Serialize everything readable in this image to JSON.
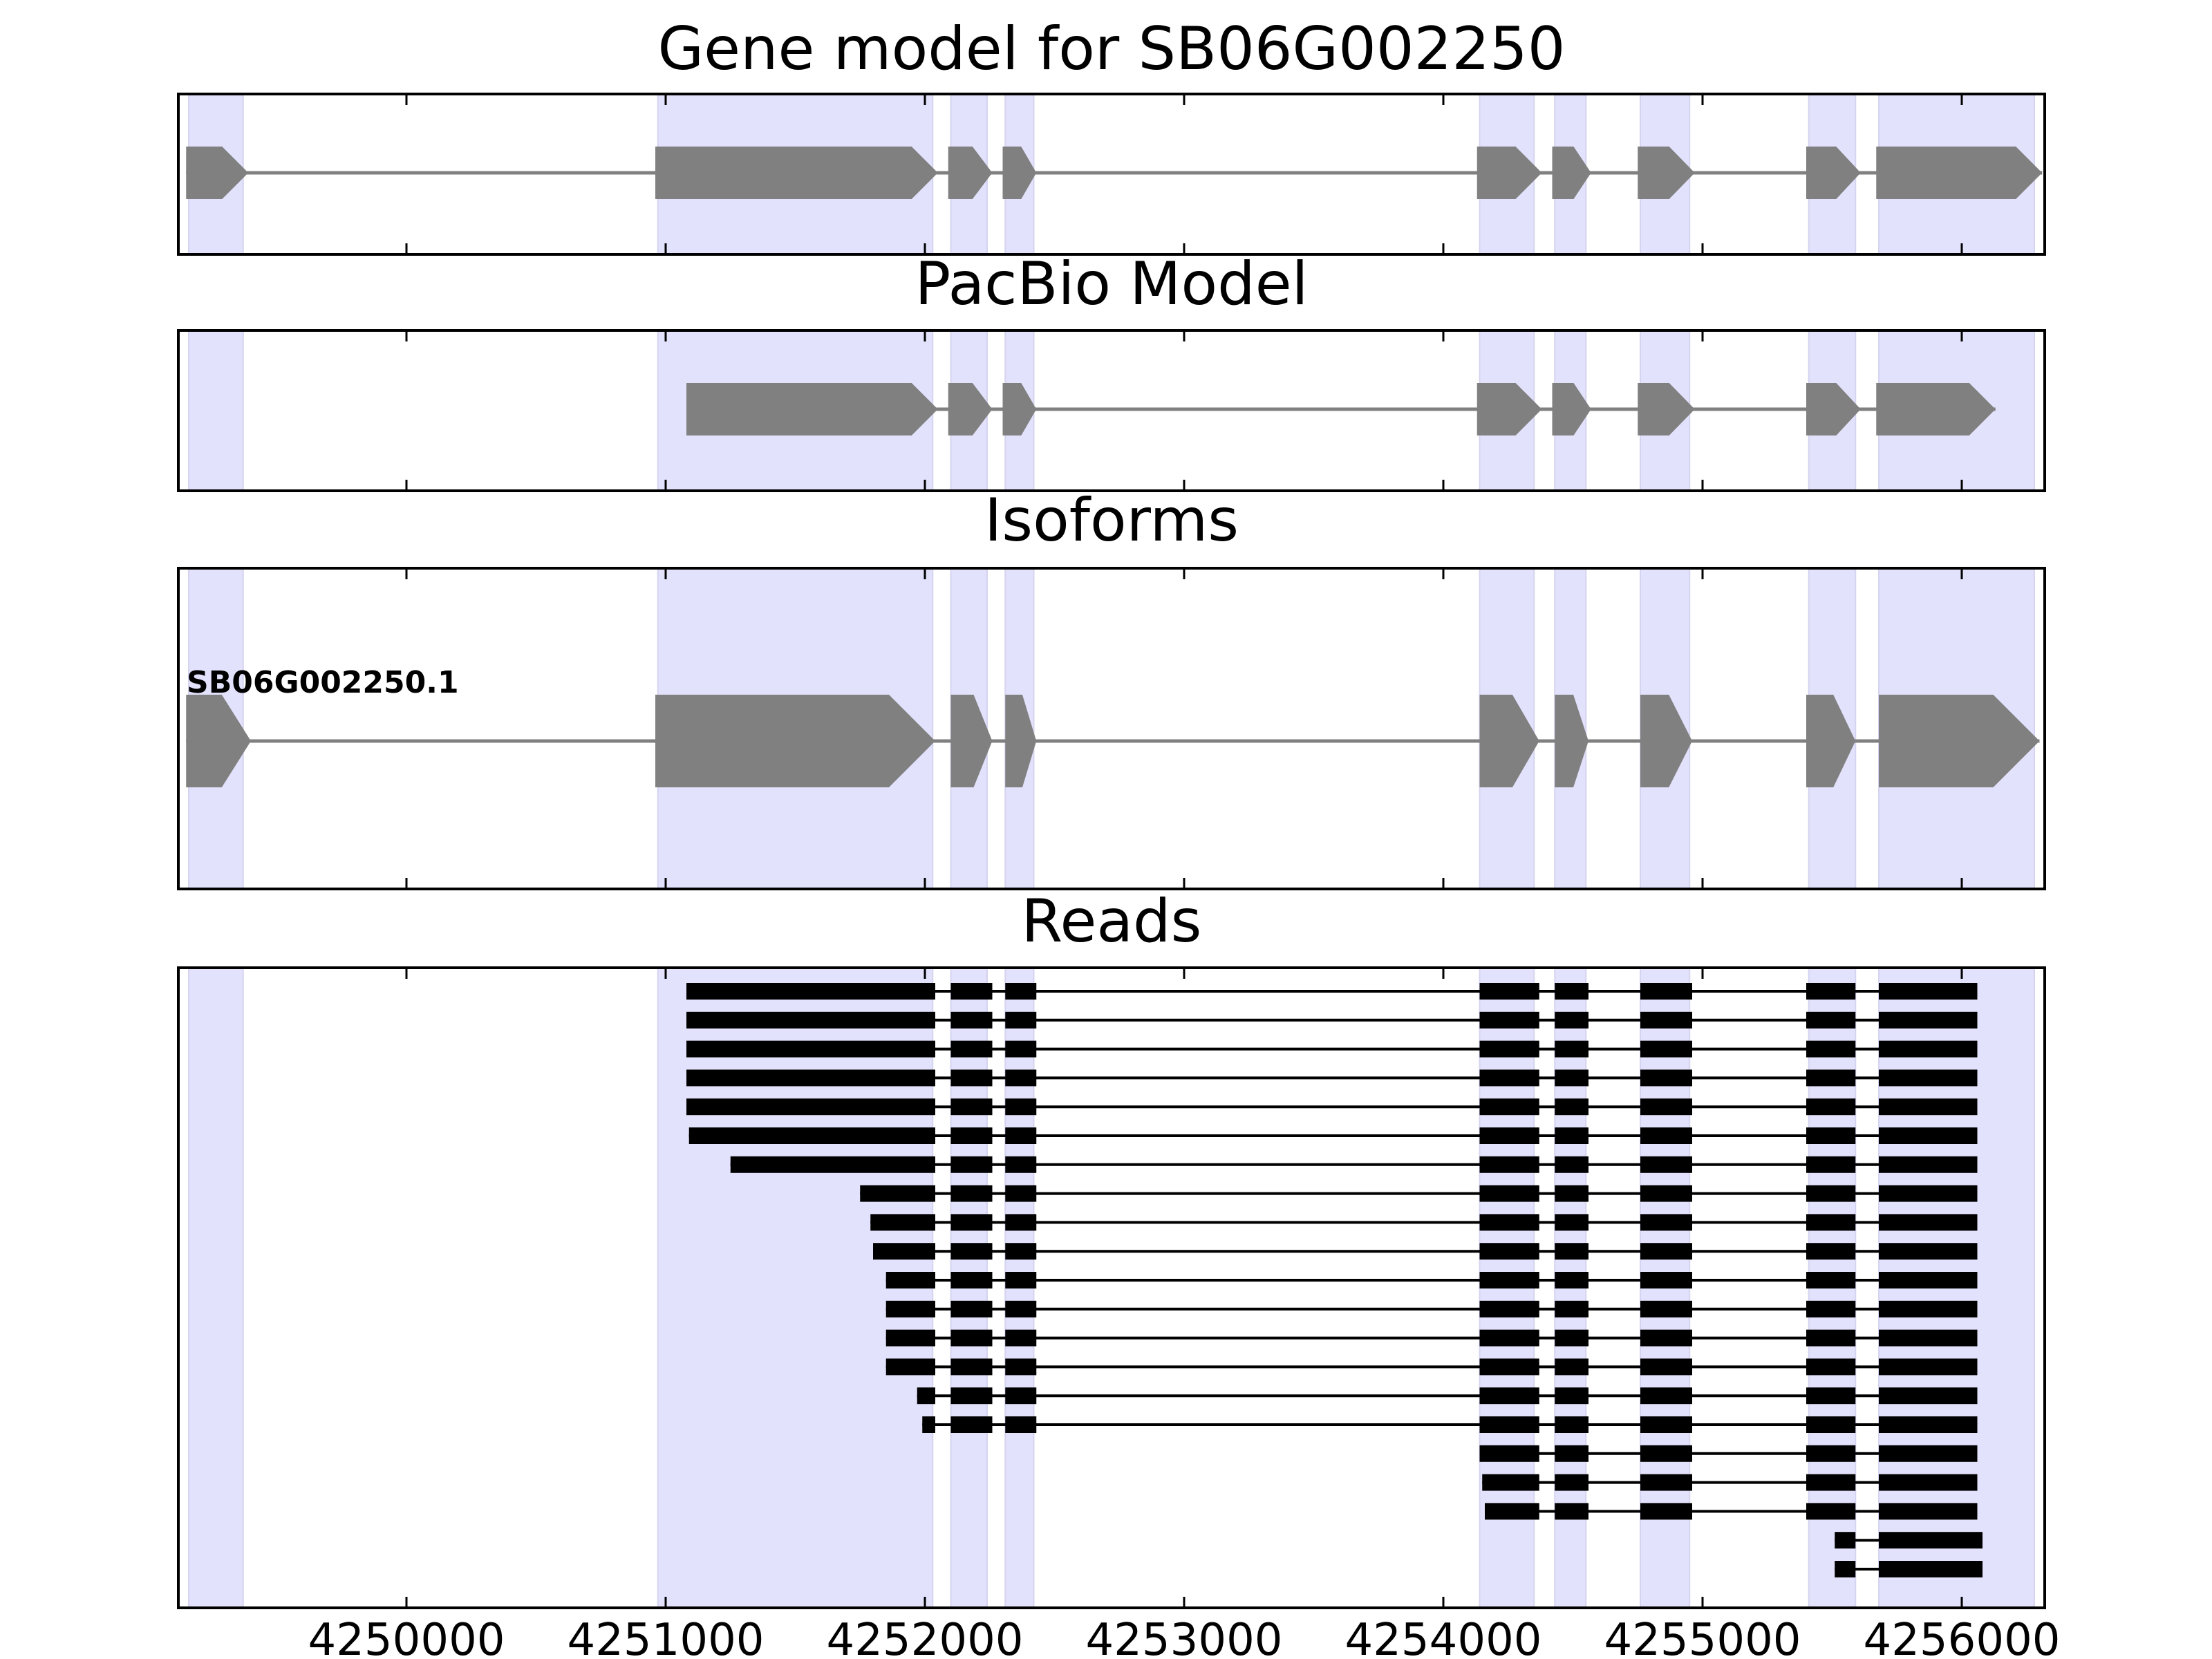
{
  "chart_data": {
    "type": "gene-track",
    "xlim": [
      4249120,
      4256320
    ],
    "x_ticks": [
      4250000,
      4251000,
      4252000,
      4253000,
      4254000,
      4255000,
      4256000
    ],
    "x_tick_labels": [
      "4250000",
      "4251000",
      "4252000",
      "4253000",
      "4254000",
      "4255000",
      "4256000"
    ],
    "highlight_color": "#e2e2fc",
    "exon_color": "#808080",
    "read_color": "#000000",
    "highlight_regions": [
      [
        4249160,
        4249370
      ],
      [
        4250970,
        4252030
      ],
      [
        4252100,
        4252240
      ],
      [
        4252310,
        4252420
      ],
      [
        4254140,
        4254350
      ],
      [
        4254430,
        4254550
      ],
      [
        4254760,
        4254950
      ],
      [
        4255410,
        4255590
      ],
      [
        4255680,
        4256280
      ]
    ],
    "panels": [
      {
        "id": "gene-model",
        "title": "Gene model for SB06G002250",
        "exons": [
          [
            4249150,
            4249390
          ],
          [
            4250960,
            4252050
          ],
          [
            4252090,
            4252260
          ],
          [
            4252300,
            4252430
          ],
          [
            4254130,
            4254380
          ],
          [
            4254420,
            4254570
          ],
          [
            4254750,
            4254970
          ],
          [
            4255400,
            4255610
          ],
          [
            4255670,
            4256310
          ]
        ]
      },
      {
        "id": "pacbio-model",
        "title": "PacBio Model",
        "exons": [
          [
            4251080,
            4252050
          ],
          [
            4252090,
            4252260
          ],
          [
            4252300,
            4252430
          ],
          [
            4254130,
            4254380
          ],
          [
            4254420,
            4254570
          ],
          [
            4254750,
            4254970
          ],
          [
            4255400,
            4255610
          ],
          [
            4255670,
            4256130
          ]
        ]
      },
      {
        "id": "isoforms",
        "title": "Isoforms",
        "isoform_label": "SB06G002250.1",
        "exons": [
          [
            4249150,
            4249400
          ],
          [
            4250960,
            4252040
          ],
          [
            4252100,
            4252260
          ],
          [
            4252310,
            4252430
          ],
          [
            4254140,
            4254370
          ],
          [
            4254430,
            4254560
          ],
          [
            4254760,
            4254960
          ],
          [
            4255400,
            4255590
          ],
          [
            4255680,
            4256300
          ]
        ]
      },
      {
        "id": "reads",
        "title": "Reads"
      }
    ],
    "reads": [
      [
        [
          4251080,
          4252040
        ],
        [
          4252100,
          4252260
        ],
        [
          4252310,
          4252430
        ],
        [
          4254140,
          4254370
        ],
        [
          4254430,
          4254560
        ],
        [
          4254760,
          4254960
        ],
        [
          4255400,
          4255590
        ],
        [
          4255680,
          4256060
        ]
      ],
      [
        [
          4251080,
          4252040
        ],
        [
          4252100,
          4252260
        ],
        [
          4252310,
          4252430
        ],
        [
          4254140,
          4254370
        ],
        [
          4254430,
          4254560
        ],
        [
          4254760,
          4254960
        ],
        [
          4255400,
          4255590
        ],
        [
          4255680,
          4256060
        ]
      ],
      [
        [
          4251080,
          4252040
        ],
        [
          4252100,
          4252260
        ],
        [
          4252310,
          4252430
        ],
        [
          4254140,
          4254370
        ],
        [
          4254430,
          4254560
        ],
        [
          4254760,
          4254960
        ],
        [
          4255400,
          4255590
        ],
        [
          4255680,
          4256060
        ]
      ],
      [
        [
          4251080,
          4252040
        ],
        [
          4252100,
          4252260
        ],
        [
          4252310,
          4252430
        ],
        [
          4254140,
          4254370
        ],
        [
          4254430,
          4254560
        ],
        [
          4254760,
          4254960
        ],
        [
          4255400,
          4255590
        ],
        [
          4255680,
          4256060
        ]
      ],
      [
        [
          4251080,
          4252040
        ],
        [
          4252100,
          4252260
        ],
        [
          4252310,
          4252430
        ],
        [
          4254140,
          4254370
        ],
        [
          4254430,
          4254560
        ],
        [
          4254760,
          4254960
        ],
        [
          4255400,
          4255590
        ],
        [
          4255680,
          4256060
        ]
      ],
      [
        [
          4251090,
          4252040
        ],
        [
          4252100,
          4252260
        ],
        [
          4252310,
          4252430
        ],
        [
          4254140,
          4254370
        ],
        [
          4254430,
          4254560
        ],
        [
          4254760,
          4254960
        ],
        [
          4255400,
          4255590
        ],
        [
          4255680,
          4256060
        ]
      ],
      [
        [
          4251250,
          4252040
        ],
        [
          4252100,
          4252260
        ],
        [
          4252310,
          4252430
        ],
        [
          4254140,
          4254370
        ],
        [
          4254430,
          4254560
        ],
        [
          4254760,
          4254960
        ],
        [
          4255400,
          4255590
        ],
        [
          4255680,
          4256060
        ]
      ],
      [
        [
          4251750,
          4252040
        ],
        [
          4252100,
          4252260
        ],
        [
          4252310,
          4252430
        ],
        [
          4254140,
          4254370
        ],
        [
          4254430,
          4254560
        ],
        [
          4254760,
          4254960
        ],
        [
          4255400,
          4255590
        ],
        [
          4255680,
          4256060
        ]
      ],
      [
        [
          4251790,
          4252040
        ],
        [
          4252100,
          4252260
        ],
        [
          4252310,
          4252430
        ],
        [
          4254140,
          4254370
        ],
        [
          4254430,
          4254560
        ],
        [
          4254760,
          4254960
        ],
        [
          4255400,
          4255590
        ],
        [
          4255680,
          4256060
        ]
      ],
      [
        [
          4251800,
          4252040
        ],
        [
          4252100,
          4252260
        ],
        [
          4252310,
          4252430
        ],
        [
          4254140,
          4254370
        ],
        [
          4254430,
          4254560
        ],
        [
          4254760,
          4254960
        ],
        [
          4255400,
          4255590
        ],
        [
          4255680,
          4256060
        ]
      ],
      [
        [
          4251850,
          4252040
        ],
        [
          4252100,
          4252260
        ],
        [
          4252310,
          4252430
        ],
        [
          4254140,
          4254370
        ],
        [
          4254430,
          4254560
        ],
        [
          4254760,
          4254960
        ],
        [
          4255400,
          4255590
        ],
        [
          4255680,
          4256060
        ]
      ],
      [
        [
          4251850,
          4252040
        ],
        [
          4252100,
          4252260
        ],
        [
          4252310,
          4252430
        ],
        [
          4254140,
          4254370
        ],
        [
          4254430,
          4254560
        ],
        [
          4254760,
          4254960
        ],
        [
          4255400,
          4255590
        ],
        [
          4255680,
          4256060
        ]
      ],
      [
        [
          4251850,
          4252040
        ],
        [
          4252100,
          4252260
        ],
        [
          4252310,
          4252430
        ],
        [
          4254140,
          4254370
        ],
        [
          4254430,
          4254560
        ],
        [
          4254760,
          4254960
        ],
        [
          4255400,
          4255590
        ],
        [
          4255680,
          4256060
        ]
      ],
      [
        [
          4251850,
          4252040
        ],
        [
          4252100,
          4252260
        ],
        [
          4252310,
          4252430
        ],
        [
          4254140,
          4254370
        ],
        [
          4254430,
          4254560
        ],
        [
          4254760,
          4254960
        ],
        [
          4255400,
          4255590
        ],
        [
          4255680,
          4256060
        ]
      ],
      [
        [
          4251970,
          4252040
        ],
        [
          4252100,
          4252260
        ],
        [
          4252310,
          4252430
        ],
        [
          4254140,
          4254370
        ],
        [
          4254430,
          4254560
        ],
        [
          4254760,
          4254960
        ],
        [
          4255400,
          4255590
        ],
        [
          4255680,
          4256060
        ]
      ],
      [
        [
          4251990,
          4252040
        ],
        [
          4252100,
          4252260
        ],
        [
          4252310,
          4252430
        ],
        [
          4254140,
          4254370
        ],
        [
          4254430,
          4254560
        ],
        [
          4254760,
          4254960
        ],
        [
          4255400,
          4255590
        ],
        [
          4255680,
          4256060
        ]
      ],
      [
        [
          4254140,
          4254370
        ],
        [
          4254430,
          4254560
        ],
        [
          4254760,
          4254960
        ],
        [
          4255400,
          4255590
        ],
        [
          4255680,
          4256060
        ]
      ],
      [
        [
          4254150,
          4254370
        ],
        [
          4254430,
          4254560
        ],
        [
          4254760,
          4254960
        ],
        [
          4255400,
          4255590
        ],
        [
          4255680,
          4256060
        ]
      ],
      [
        [
          4254160,
          4254370
        ],
        [
          4254430,
          4254560
        ],
        [
          4254760,
          4254960
        ],
        [
          4255400,
          4255590
        ],
        [
          4255680,
          4256060
        ]
      ],
      [
        [
          4255510,
          4255590
        ],
        [
          4255680,
          4256080
        ]
      ],
      [
        [
          4255510,
          4255590
        ],
        [
          4255680,
          4256080
        ]
      ]
    ]
  }
}
